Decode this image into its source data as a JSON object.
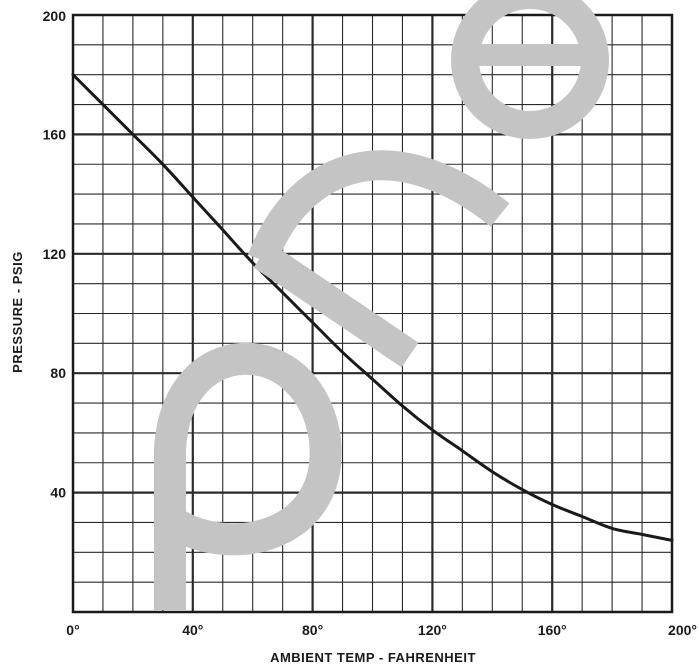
{
  "chart_data": {
    "type": "line",
    "title": "",
    "xlabel": "AMBIENT TEMP - FAHRENHEIT",
    "ylabel": "PRESSURE - PSIG",
    "xlim": [
      0,
      200
    ],
    "ylim": [
      0,
      200
    ],
    "x_tick_labels": [
      "0°",
      "40°",
      "80°",
      "120°",
      "160°",
      "200°"
    ],
    "y_tick_labels": [
      "40",
      "80",
      "120",
      "160",
      "200"
    ],
    "grid": true,
    "legend": "none",
    "series": [
      {
        "x": [
          0,
          10,
          20,
          30,
          40,
          50,
          60,
          70,
          80,
          90,
          100,
          110,
          120,
          130,
          140,
          150,
          160,
          170,
          180,
          190,
          200
        ],
        "y": [
          180,
          170,
          160,
          150,
          139,
          128,
          117,
          107,
          97,
          87,
          78,
          69,
          61,
          54,
          47,
          41,
          36,
          32,
          28,
          26,
          24
        ]
      }
    ],
    "colors": {
      "line": "#1a1a1a",
      "grid": "#2a2a2a",
      "watermark": "#c4c4c4"
    }
  }
}
